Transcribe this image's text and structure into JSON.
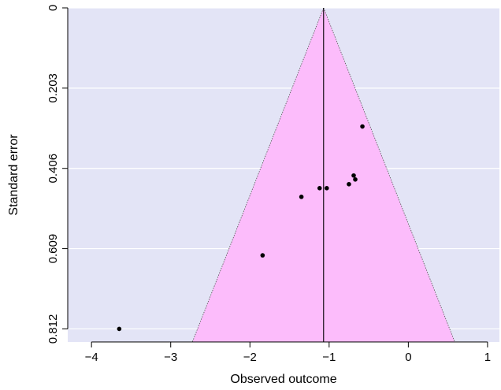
{
  "chart_data": {
    "type": "scatter",
    "subtype": "funnel plot",
    "xlabel": "Observed outcome",
    "ylabel": "Standard error",
    "x_ticks": [
      -4,
      -3,
      -2,
      -1,
      0,
      1
    ],
    "y_ticks": [
      "0",
      "0.203",
      "0.406",
      "0.609",
      "0.812"
    ],
    "y_tick_values": [
      0,
      0.203,
      0.406,
      0.609,
      0.812
    ],
    "y_reversed": true,
    "xlim": [
      -4.3,
      1.15
    ],
    "ylim": [
      0,
      0.845
    ],
    "grid": true,
    "center_estimate": -1.07,
    "points": [
      {
        "x": -3.65,
        "y": 0.812
      },
      {
        "x": -1.84,
        "y": 0.626
      },
      {
        "x": -1.35,
        "y": 0.478
      },
      {
        "x": -1.12,
        "y": 0.456
      },
      {
        "x": -1.03,
        "y": 0.456
      },
      {
        "x": -0.75,
        "y": 0.446
      },
      {
        "x": -0.69,
        "y": 0.424
      },
      {
        "x": -0.67,
        "y": 0.434
      },
      {
        "x": -0.58,
        "y": 0.3
      }
    ],
    "colors": {
      "plot_background": "#e3e4f6",
      "funnel_fill": "#fcbcfb",
      "grid": "#ffffff",
      "points": "#000000",
      "center_line": "#000000"
    }
  }
}
